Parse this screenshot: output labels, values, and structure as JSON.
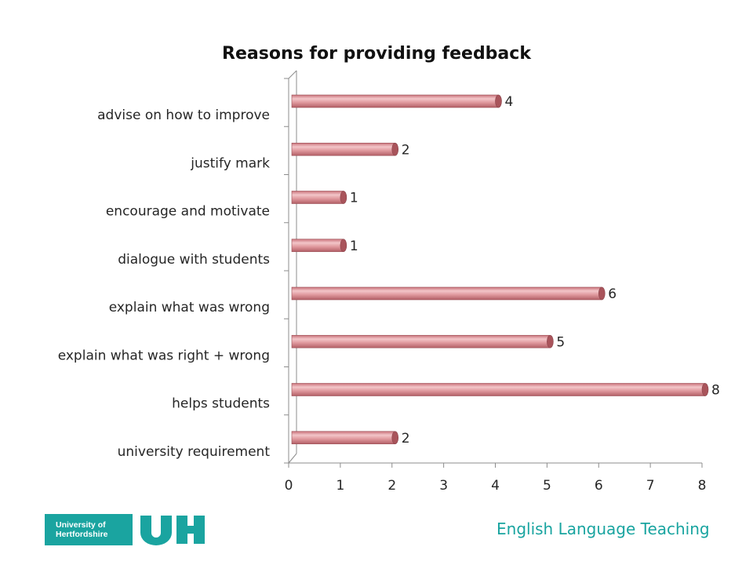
{
  "chart_data": {
    "type": "bar",
    "orientation": "horizontal",
    "title": "Reasons for providing feedback",
    "categories": [
      "advise on how to improve",
      "justify mark",
      "encourage and motivate",
      "dialogue with students",
      "explain what was wrong",
      "explain what was right + wrong",
      "helps students",
      "university requirement"
    ],
    "values": [
      4,
      2,
      1,
      1,
      6,
      5,
      8,
      2
    ],
    "x_ticks": [
      "0",
      "1",
      "2",
      "3",
      "4",
      "5",
      "6",
      "7",
      "8"
    ],
    "xlim": [
      0,
      8
    ],
    "grid": false,
    "legend": "none",
    "bar_color": "#d9868b",
    "bar_dark": "#a9545b"
  },
  "footer": {
    "logo_line1": "University of",
    "logo_line2": "Hertfordshire",
    "logo_mark": "UH",
    "text": "English Language Teaching",
    "accent": "#19a4a0"
  }
}
